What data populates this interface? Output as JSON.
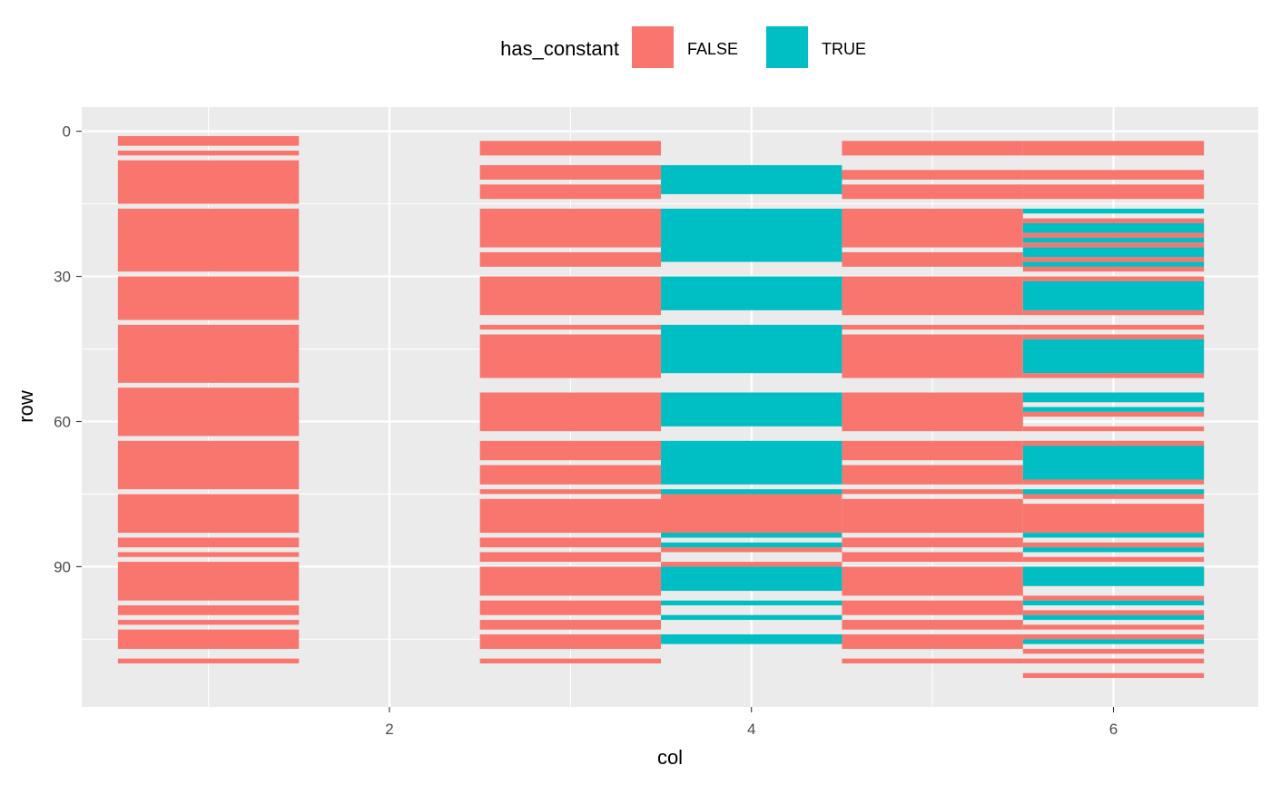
{
  "chart_data": {
    "type": "heatmap",
    "title": "",
    "xlabel": "col",
    "ylabel": "row",
    "x_ticks": [
      2,
      4,
      6
    ],
    "y_ticks": [
      0,
      30,
      60,
      90
    ],
    "xlim": [
      0.3,
      6.8
    ],
    "ylim": [
      -5,
      119
    ],
    "y_reversed": true,
    "grid": true,
    "legend": {
      "title": "has_constant",
      "position": "top",
      "entries": [
        {
          "label": "FALSE",
          "color": "#F8766D"
        },
        {
          "label": "TRUE",
          "color": "#00BFC4"
        }
      ]
    },
    "series": [
      {
        "name": "FALSE",
        "color": "#F8766D",
        "tiles": [
          {
            "col": 1,
            "rows": [
              [
                1,
                3
              ],
              [
                4,
                5
              ],
              [
                6,
                15
              ],
              [
                16,
                29
              ],
              [
                30,
                39
              ],
              [
                40,
                52
              ],
              [
                53,
                63
              ],
              [
                64,
                74
              ],
              [
                75,
                83
              ],
              [
                84,
                86
              ],
              [
                87,
                88
              ],
              [
                89,
                97
              ],
              [
                98,
                100
              ],
              [
                101,
                102
              ],
              [
                103,
                107
              ],
              [
                109,
                110
              ]
            ]
          },
          {
            "col": 3,
            "rows": [
              [
                2,
                5
              ],
              [
                7,
                10
              ],
              [
                11,
                14
              ],
              [
                16,
                24
              ],
              [
                25,
                28
              ],
              [
                30,
                38
              ],
              [
                40,
                41
              ],
              [
                42,
                51
              ],
              [
                54,
                62
              ],
              [
                64,
                68
              ],
              [
                69,
                73
              ],
              [
                74,
                75
              ],
              [
                76,
                83
              ],
              [
                84,
                86
              ],
              [
                87,
                89
              ],
              [
                90,
                96
              ],
              [
                97,
                100
              ],
              [
                101,
                103
              ],
              [
                104,
                107
              ],
              [
                109,
                110
              ]
            ]
          },
          {
            "col": 4,
            "rows": [
              [
                75,
                84
              ],
              [
                86,
                87
              ],
              [
                89,
                90
              ]
            ]
          },
          {
            "col": 5,
            "rows": [
              [
                2,
                5
              ],
              [
                8,
                10
              ],
              [
                11,
                14
              ],
              [
                16,
                24
              ],
              [
                25,
                28
              ],
              [
                30,
                38
              ],
              [
                40,
                41
              ],
              [
                42,
                51
              ],
              [
                54,
                62
              ],
              [
                64,
                68
              ],
              [
                69,
                73
              ],
              [
                74,
                75
              ],
              [
                76,
                83
              ],
              [
                84,
                86
              ],
              [
                87,
                89
              ],
              [
                90,
                96
              ],
              [
                97,
                100
              ],
              [
                101,
                103
              ],
              [
                104,
                107
              ],
              [
                109,
                110
              ]
            ]
          },
          {
            "col": 6,
            "rows": [
              [
                2,
                5
              ],
              [
                8,
                10
              ],
              [
                11,
                14
              ],
              [
                18,
                19
              ],
              [
                21,
                22
              ],
              [
                23,
                24
              ],
              [
                26,
                27
              ],
              [
                28,
                29
              ],
              [
                30,
                31
              ],
              [
                37,
                38
              ],
              [
                40,
                41
              ],
              [
                42,
                43
              ],
              [
                50,
                51
              ],
              [
                54,
                56
              ],
              [
                58,
                59
              ],
              [
                61,
                62
              ],
              [
                64,
                66
              ],
              [
                72,
                73
              ],
              [
                75,
                76
              ],
              [
                77,
                83
              ],
              [
                85,
                86
              ],
              [
                88,
                89
              ],
              [
                90,
                94
              ],
              [
                96,
                97
              ],
              [
                99,
                100
              ],
              [
                102,
                103
              ],
              [
                104,
                105
              ],
              [
                107,
                108
              ],
              [
                109,
                110
              ],
              [
                112,
                113
              ]
            ]
          }
        ]
      },
      {
        "name": "TRUE",
        "color": "#00BFC4",
        "tiles": [
          {
            "col": 4,
            "rows": [
              [
                7,
                13
              ],
              [
                16,
                27
              ],
              [
                30,
                37
              ],
              [
                40,
                50
              ],
              [
                54,
                61
              ],
              [
                64,
                73
              ],
              [
                74,
                75
              ],
              [
                83,
                84
              ],
              [
                85,
                86
              ],
              [
                90,
                95
              ],
              [
                97,
                98
              ],
              [
                100,
                101
              ],
              [
                104,
                106
              ]
            ]
          },
          {
            "col": 6,
            "rows": [
              [
                16,
                17
              ],
              [
                19,
                21
              ],
              [
                22,
                23
              ],
              [
                24,
                26
              ],
              [
                27,
                28
              ],
              [
                31,
                37
              ],
              [
                43,
                50
              ],
              [
                54,
                56
              ],
              [
                57,
                58
              ],
              [
                65,
                72
              ],
              [
                74,
                75
              ],
              [
                83,
                84
              ],
              [
                86,
                87
              ],
              [
                90,
                94
              ],
              [
                97,
                98
              ],
              [
                100,
                101
              ],
              [
                105,
                106
              ]
            ]
          }
        ]
      }
    ]
  }
}
